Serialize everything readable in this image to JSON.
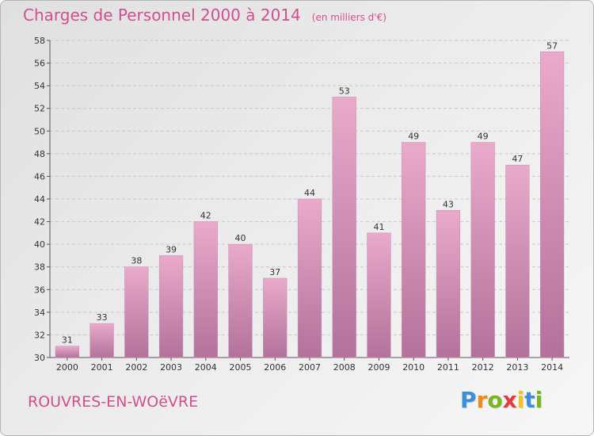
{
  "header": {
    "title": "Charges de Personnel 2000 à 2014",
    "subtitle": "(en milliers d'€)"
  },
  "footer": {
    "town": "ROUVRES-EN-WOëVRE",
    "logo_letters": [
      "P",
      "r",
      "o",
      "x",
      "i",
      "t",
      "i"
    ],
    "logo_colors": [
      "#3a8fd8",
      "#f08a1c",
      "#7ab51d",
      "#e43b3b",
      "#f0c419",
      "#3a8fd8",
      "#7ab51d"
    ]
  },
  "colors": {
    "title": "#d24f8f",
    "bar_light": "#e9aacb",
    "bar_dark": "#b3729a"
  },
  "chart_data": {
    "type": "bar",
    "categories": [
      "2000",
      "2001",
      "2002",
      "2003",
      "2004",
      "2005",
      "2006",
      "2007",
      "2008",
      "2009",
      "2010",
      "2011",
      "2012",
      "2013",
      "2014"
    ],
    "values": [
      31,
      33,
      38,
      39,
      42,
      40,
      37,
      44,
      53,
      41,
      49,
      43,
      49,
      47,
      57
    ],
    "title": "Charges de Personnel 2000 à 2014",
    "subtitle": "(en milliers d'€)",
    "xlabel": "",
    "ylabel": "",
    "ylim": [
      30,
      58
    ],
    "yticks": [
      30,
      32,
      34,
      36,
      38,
      40,
      42,
      44,
      46,
      48,
      50,
      52,
      54,
      56,
      58
    ],
    "grid": true,
    "legend": "none"
  }
}
